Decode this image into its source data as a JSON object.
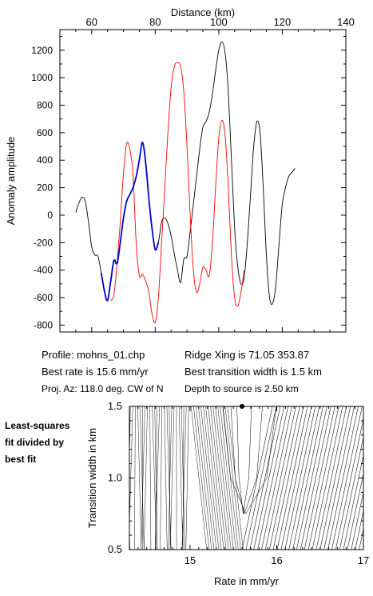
{
  "chart_data": [
    {
      "type": "line",
      "xlabel": "Distance (km)",
      "ylabel": "Anomaly amplitude",
      "xlim": [
        50,
        140
      ],
      "ylim": [
        -850,
        1350
      ],
      "x_ticks": [
        60,
        80,
        100,
        120,
        140
      ],
      "y_ticks": [
        -800,
        -600,
        -400,
        -200,
        0,
        200,
        400,
        600,
        800,
        1000,
        1200
      ],
      "series": [
        {
          "color": "#000000",
          "points": [
            [
              55,
              20
            ],
            [
              56,
              90
            ],
            [
              57,
              130
            ],
            [
              58,
              100
            ],
            [
              59,
              -50
            ],
            [
              60,
              -230
            ],
            [
              61,
              -290
            ],
            [
              62,
              -300
            ],
            [
              63,
              -420
            ],
            [
              64,
              -550
            ],
            [
              65,
              -620
            ],
            [
              66,
              -480
            ],
            [
              67,
              -330
            ],
            [
              68,
              -350
            ],
            [
              69,
              -200
            ],
            [
              70,
              -20
            ],
            [
              71,
              100
            ],
            [
              72,
              150
            ],
            [
              73,
              200
            ],
            [
              74,
              280
            ],
            [
              75,
              400
            ],
            [
              76,
              530
            ],
            [
              77,
              380
            ],
            [
              78,
              120
            ],
            [
              79,
              -100
            ],
            [
              80,
              -250
            ],
            [
              81,
              -200
            ],
            [
              82,
              -50
            ],
            [
              83,
              -20
            ],
            [
              84,
              -60
            ],
            [
              85,
              -150
            ],
            [
              86,
              -280
            ],
            [
              87,
              -400
            ],
            [
              88,
              -490
            ],
            [
              89,
              -320
            ],
            [
              90,
              -300
            ],
            [
              91,
              -120
            ],
            [
              92,
              80
            ],
            [
              93,
              280
            ],
            [
              94,
              480
            ],
            [
              95,
              640
            ],
            [
              96,
              680
            ],
            [
              97,
              750
            ],
            [
              98,
              880
            ],
            [
              99,
              1050
            ],
            [
              100,
              1200
            ],
            [
              101,
              1260
            ],
            [
              102,
              1180
            ],
            [
              103,
              900
            ],
            [
              104,
              400
            ],
            [
              105,
              -100
            ],
            [
              106,
              -380
            ],
            [
              107,
              -500
            ],
            [
              108,
              -450
            ],
            [
              109,
              -200
            ],
            [
              110,
              150
            ],
            [
              111,
              500
            ],
            [
              112,
              680
            ],
            [
              113,
              600
            ],
            [
              114,
              200
            ],
            [
              115,
              -300
            ],
            [
              116,
              -600
            ],
            [
              117,
              -640
            ],
            [
              118,
              -500
            ],
            [
              119,
              -200
            ],
            [
              120,
              80
            ],
            [
              121,
              200
            ],
            [
              122,
              280
            ],
            [
              123,
              310
            ],
            [
              124,
              340
            ]
          ]
        },
        {
          "color": "#ff0000",
          "points": [
            [
              66,
              -620
            ],
            [
              67,
              -580
            ],
            [
              68,
              -350
            ],
            [
              69,
              -50
            ],
            [
              70,
              300
            ],
            [
              71,
              520
            ],
            [
              72,
              480
            ],
            [
              73,
              300
            ],
            [
              74,
              -200
            ],
            [
              75,
              -440
            ],
            [
              76,
              -430
            ],
            [
              77,
              -480
            ],
            [
              78,
              -560
            ],
            [
              79,
              -720
            ],
            [
              80,
              -780
            ],
            [
              81,
              -600
            ],
            [
              82,
              -200
            ],
            [
              83,
              200
            ],
            [
              84,
              600
            ],
            [
              85,
              930
            ],
            [
              86,
              1080
            ],
            [
              87,
              1110
            ],
            [
              88,
              1080
            ],
            [
              89,
              900
            ],
            [
              90,
              500
            ],
            [
              91,
              0
            ],
            [
              92,
              -400
            ],
            [
              93,
              -560
            ],
            [
              94,
              -500
            ],
            [
              95,
              -380
            ],
            [
              96,
              -400
            ],
            [
              97,
              -440
            ],
            [
              98,
              -200
            ],
            [
              99,
              200
            ],
            [
              100,
              560
            ],
            [
              101,
              690
            ],
            [
              102,
              580
            ],
            [
              103,
              200
            ],
            [
              104,
              -300
            ],
            [
              105,
              -600
            ],
            [
              106,
              -660
            ],
            [
              107,
              -560
            ],
            [
              108,
              -400
            ]
          ]
        },
        {
          "color": "#0000cc",
          "points": [
            [
              63,
              -420
            ],
            [
              64,
              -550
            ],
            [
              65,
              -620
            ],
            [
              66,
              -480
            ],
            [
              67,
              -330
            ],
            [
              68,
              -350
            ],
            [
              69,
              -200
            ],
            [
              70,
              -20
            ],
            [
              71,
              100
            ],
            [
              72,
              150
            ],
            [
              73,
              200
            ],
            [
              74,
              280
            ],
            [
              75,
              400
            ],
            [
              76,
              530
            ],
            [
              77,
              380
            ],
            [
              78,
              120
            ],
            [
              79,
              -100
            ],
            [
              80,
              -250
            ],
            [
              81,
              -200
            ]
          ]
        }
      ]
    },
    {
      "type": "contour",
      "xlabel": "Rate in mm/yr",
      "ylabel": "Transition width in km",
      "xlim": [
        14.3,
        17.0
      ],
      "ylim": [
        0.5,
        1.5
      ],
      "x_ticks": [
        15,
        16,
        17
      ],
      "y_ticks": [
        0.5,
        1.0,
        1.5
      ],
      "best_fit_marker": {
        "rate": 15.6,
        "width": 1.5
      }
    }
  ],
  "info": {
    "profile": "Profile: mohns_01.chp",
    "ridge_xing": "Ridge Xing is 71.05 353.87",
    "best_rate": "Best rate is 15.6 mm/yr",
    "best_width": "Best transition width is 1.5 km",
    "proj_az": "Proj. Az: 118.0 deg. CW of N",
    "depth": "Depth to source is   2.50 km"
  },
  "side_note": [
    "Least-squares",
    "fit divided by",
    "best fit"
  ]
}
